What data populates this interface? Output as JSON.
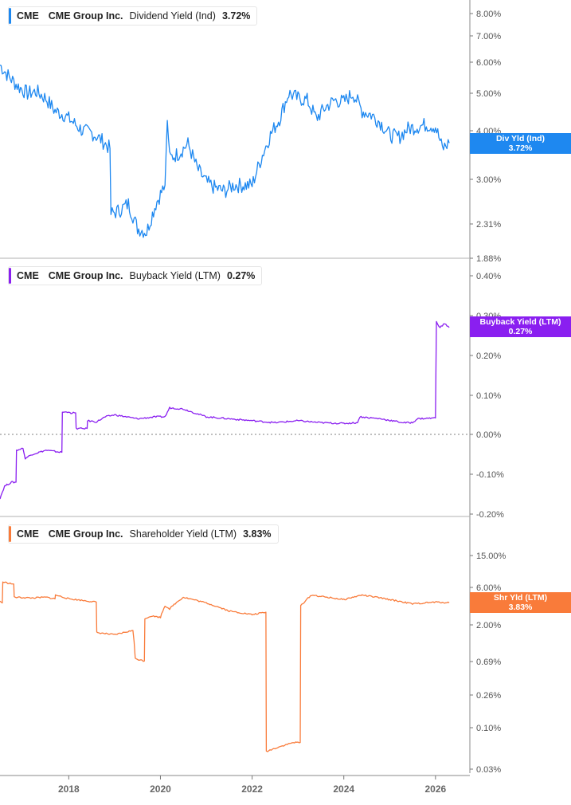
{
  "chart_data": [
    {
      "type": "line",
      "title": "CME Group Inc. Dividend Yield (Ind)",
      "legend": {
        "ticker": "CME",
        "company": "CME Group Inc.",
        "metric": "Dividend Yield (Ind)",
        "value": "3.72%"
      },
      "badge": {
        "label": "Div Yld (Ind)",
        "value": "3.72%"
      },
      "color": "#1e88f0",
      "yscale": "log",
      "yticks": [
        "8.00%",
        "7.00%",
        "6.00%",
        "5.00%",
        "4.00%",
        "3.00%",
        "2.31%",
        "1.88%"
      ],
      "ytick_values": [
        8.0,
        7.0,
        6.0,
        5.0,
        4.0,
        3.0,
        2.31,
        1.88
      ],
      "ylim": [
        1.88,
        8.6
      ],
      "x": [
        2016.5,
        2016.7,
        2016.9,
        2017.1,
        2017.3,
        2017.5,
        2017.7,
        2017.9,
        2018.1,
        2018.3,
        2018.5,
        2018.7,
        2018.9,
        2018.92,
        2019.1,
        2019.3,
        2019.5,
        2019.7,
        2019.9,
        2020.1,
        2020.15,
        2020.2,
        2020.4,
        2020.6,
        2020.8,
        2021.0,
        2021.2,
        2021.4,
        2021.6,
        2021.8,
        2022.0,
        2022.2,
        2022.4,
        2022.6,
        2022.8,
        2023.0,
        2023.2,
        2023.4,
        2023.6,
        2023.8,
        2024.0,
        2024.2,
        2024.4,
        2024.6,
        2024.8,
        2025.0,
        2025.2,
        2025.4,
        2025.6,
        2025.8,
        2026.0,
        2026.15,
        2026.3
      ],
      "values": [
        5.9,
        5.5,
        5.2,
        5.0,
        5.05,
        4.85,
        4.5,
        4.4,
        4.2,
        4.0,
        3.95,
        3.8,
        3.6,
        2.45,
        2.5,
        2.6,
        2.25,
        2.2,
        2.6,
        2.9,
        4.25,
        3.4,
        3.5,
        3.7,
        3.2,
        2.95,
        2.85,
        2.8,
        2.9,
        2.9,
        2.9,
        3.4,
        3.9,
        4.3,
        5.0,
        4.85,
        4.8,
        4.3,
        4.6,
        4.8,
        4.75,
        5.0,
        4.5,
        4.4,
        4.2,
        3.9,
        3.85,
        4.05,
        4.1,
        4.15,
        4.1,
        3.6,
        3.72
      ],
      "xlabel": "",
      "ylabel": ""
    },
    {
      "type": "line",
      "title": "CME Group Inc. Buyback Yield (LTM)",
      "legend": {
        "ticker": "CME",
        "company": "CME Group Inc.",
        "metric": "Buyback Yield (LTM)",
        "value": "0.27%"
      },
      "badge": {
        "label": "Buyback Yield (LTM)",
        "value": "0.27%"
      },
      "color": "#8a1ff0",
      "yscale": "linear",
      "yticks": [
        "0.40%",
        "0.30%",
        "0.20%",
        "0.10%",
        "0.00%",
        "-0.10%",
        "-0.20%"
      ],
      "ytick_values": [
        0.4,
        0.3,
        0.2,
        0.1,
        0.0,
        -0.1,
        -0.2
      ],
      "ylim": [
        -0.2,
        0.4
      ],
      "zero_line": true,
      "x": [
        2016.5,
        2016.6,
        2016.75,
        2016.85,
        2016.86,
        2017.0,
        2017.05,
        2017.2,
        2017.5,
        2017.85,
        2017.86,
        2018.0,
        2018.05,
        2018.15,
        2018.16,
        2018.4,
        2018.41,
        2018.6,
        2018.8,
        2019.0,
        2019.5,
        2019.9,
        2020.1,
        2020.2,
        2020.5,
        2021.0,
        2021.5,
        2022.0,
        2022.5,
        2023.0,
        2023.5,
        2024.0,
        2024.3,
        2024.35,
        2024.8,
        2025.3,
        2025.5,
        2025.6,
        2026.0,
        2026.02,
        2026.1,
        2026.2,
        2026.3
      ],
      "values": [
        -0.16,
        -0.13,
        -0.12,
        -0.12,
        -0.04,
        -0.035,
        -0.06,
        -0.05,
        -0.04,
        -0.045,
        0.057,
        0.057,
        0.055,
        0.055,
        0.015,
        0.015,
        0.035,
        0.032,
        0.045,
        0.05,
        0.04,
        0.045,
        0.045,
        0.068,
        0.065,
        0.045,
        0.04,
        0.035,
        0.03,
        0.035,
        0.03,
        0.028,
        0.03,
        0.045,
        0.04,
        0.03,
        0.03,
        0.04,
        0.042,
        0.285,
        0.27,
        0.28,
        0.27
      ],
      "xlabel": "",
      "ylabel": ""
    },
    {
      "type": "line",
      "title": "CME Group Inc. Shareholder Yield (LTM)",
      "legend": {
        "ticker": "CME",
        "company": "CME Group Inc.",
        "metric": "Shareholder Yield (LTM)",
        "value": "3.83%"
      },
      "badge": {
        "label": "Shr Yld (LTM)",
        "value": "3.83%"
      },
      "color": "#f97b3a",
      "yscale": "log",
      "yticks": [
        "15.00%",
        "6.00%",
        "2.00%",
        "0.69%",
        "0.26%",
        "0.10%",
        "0.03%"
      ],
      "ytick_values": [
        15.0,
        6.0,
        2.0,
        0.69,
        0.26,
        0.1,
        0.03
      ],
      "ylim": [
        0.028,
        40
      ],
      "x": [
        2016.5,
        2016.55,
        2016.56,
        2016.8,
        2016.81,
        2017.2,
        2017.5,
        2017.7,
        2017.71,
        2018.0,
        2018.3,
        2018.6,
        2018.61,
        2019.0,
        2019.4,
        2019.45,
        2019.65,
        2019.66,
        2019.8,
        2020.0,
        2020.1,
        2020.2,
        2020.5,
        2021.0,
        2021.5,
        2022.0,
        2022.3,
        2022.31,
        2022.5,
        2022.9,
        2023.05,
        2023.06,
        2023.3,
        2023.5,
        2024.0,
        2024.4,
        2025.0,
        2025.5,
        2026.0,
        2026.3
      ],
      "values": [
        4.0,
        3.8,
        7.0,
        6.6,
        4.5,
        4.4,
        4.5,
        4.3,
        4.8,
        4.3,
        4.1,
        3.9,
        1.6,
        1.5,
        1.7,
        0.75,
        0.7,
        2.4,
        2.6,
        2.5,
        3.5,
        3.2,
        4.5,
        3.8,
        3.0,
        2.7,
        2.9,
        0.05,
        0.055,
        0.065,
        0.065,
        3.5,
        4.8,
        4.6,
        4.2,
        4.8,
        4.2,
        3.7,
        3.9,
        3.83
      ],
      "xlabel": "",
      "ylabel": ""
    }
  ],
  "x_axis": {
    "ticks": [
      "2018",
      "2020",
      "2022",
      "2024",
      "2026"
    ],
    "tick_values": [
      2018,
      2020,
      2022,
      2024,
      2026
    ],
    "xlim": [
      2016.5,
      2026.75
    ]
  },
  "colors": {
    "axis": "#b0b0b0",
    "tick_text": "#555555",
    "separator": "#b0b0b0"
  }
}
